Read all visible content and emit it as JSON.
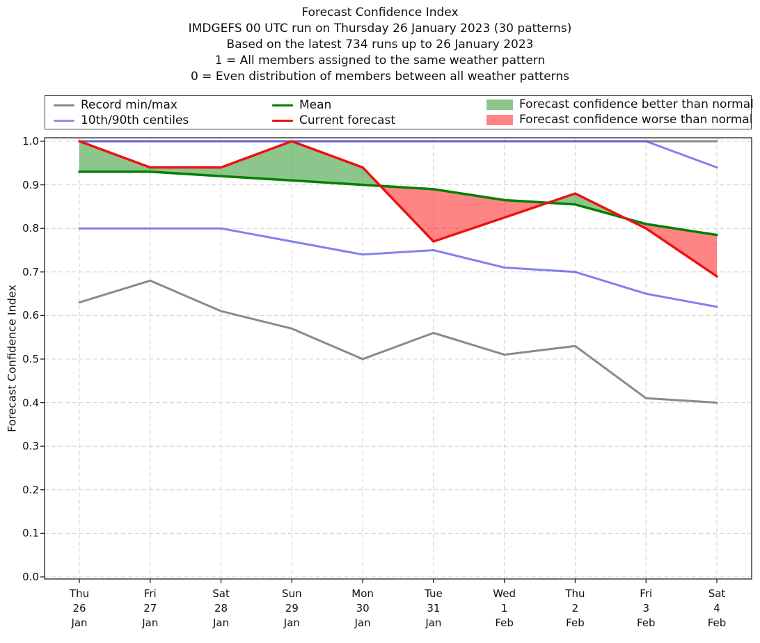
{
  "figure": {
    "title_lines": [
      "Forecast Confidence Index",
      "IMDGEFS 00 UTC run on Thursday 26 January 2023 (30 patterns)",
      "Based on the latest 734 runs up to 26 January 2023",
      "1 = All members assigned to the same weather pattern",
      "0 = Even distribution of members between all weather patterns"
    ]
  },
  "chart_data": {
    "type": "line",
    "title": "Forecast Confidence Index",
    "xlabel": "",
    "ylabel": "Forecast Confidence Index",
    "ylim": [
      0.0,
      1.0
    ],
    "yticks": [
      0.0,
      0.1,
      0.2,
      0.3,
      0.4,
      0.5,
      0.6,
      0.7,
      0.8,
      0.9,
      1.0
    ],
    "grid": true,
    "categories": [
      [
        "Thu",
        "26",
        "Jan"
      ],
      [
        "Fri",
        "27",
        "Jan"
      ],
      [
        "Sat",
        "28",
        "Jan"
      ],
      [
        "Sun",
        "29",
        "Jan"
      ],
      [
        "Mon",
        "30",
        "Jan"
      ],
      [
        "Tue",
        "31",
        "Jan"
      ],
      [
        "Wed",
        "1",
        "Feb"
      ],
      [
        "Thu",
        "2",
        "Feb"
      ],
      [
        "Fri",
        "3",
        "Feb"
      ],
      [
        "Sat",
        "4",
        "Feb"
      ]
    ],
    "series": [
      {
        "name": "Record max",
        "color": "#8a8a8a",
        "width": 3,
        "values": [
          1.0,
          1.0,
          1.0,
          1.0,
          1.0,
          1.0,
          1.0,
          1.0,
          1.0,
          1.0
        ]
      },
      {
        "name": "Record min",
        "color": "#8a8a8a",
        "width": 3,
        "values": [
          0.63,
          0.68,
          0.61,
          0.57,
          0.5,
          0.56,
          0.51,
          0.53,
          0.41,
          0.4
        ]
      },
      {
        "name": "90th centile",
        "color": "rgba(80,80,230,0.72)",
        "width": 3,
        "values": [
          1.0,
          1.0,
          1.0,
          1.0,
          1.0,
          1.0,
          1.0,
          1.0,
          1.0,
          0.94
        ]
      },
      {
        "name": "10th centile",
        "color": "rgba(80,80,230,0.72)",
        "width": 3,
        "values": [
          0.8,
          0.8,
          0.8,
          0.77,
          0.74,
          0.75,
          0.71,
          0.7,
          0.65,
          0.62
        ]
      },
      {
        "name": "Mean",
        "color": "#008000",
        "width": 3.5,
        "values": [
          0.93,
          0.93,
          0.92,
          0.91,
          0.9,
          0.89,
          0.865,
          0.855,
          0.81,
          0.785
        ]
      },
      {
        "name": "Current forecast",
        "color": "#ee1111",
        "width": 3.5,
        "values": [
          1.0,
          0.94,
          0.94,
          1.0,
          0.94,
          0.77,
          0.825,
          0.88,
          0.8,
          0.69
        ]
      }
    ],
    "fills": {
      "better_than_normal_color": "rgba(0,128,0,0.45)",
      "worse_than_normal_color": "rgba(255,0,0,0.48)"
    },
    "legend": {
      "position": "top",
      "items": [
        {
          "label": "Record min/max",
          "type": "line",
          "color": "#8a8a8a"
        },
        {
          "label": "10th/90th centiles",
          "type": "line",
          "color": "#8f8fee"
        },
        {
          "label": "Mean",
          "type": "line",
          "color": "#008000"
        },
        {
          "label": "Current forecast",
          "type": "line",
          "color": "#ee1111"
        },
        {
          "label": "Forecast confidence better than normal",
          "type": "patch",
          "color": "#8cc68c"
        },
        {
          "label": "Forecast confidence worse than normal",
          "type": "patch",
          "color": "#ff8585"
        }
      ]
    }
  }
}
